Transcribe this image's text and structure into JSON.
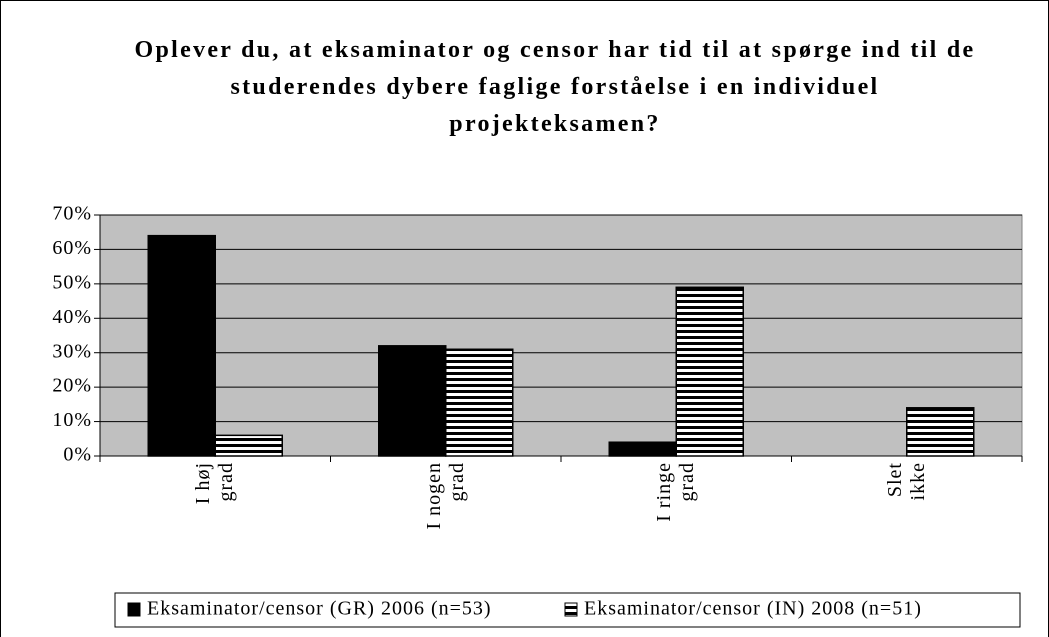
{
  "chart_data": {
    "type": "bar",
    "title": "Oplever du, at eksaminator og censor har tid til at spørge ind til de studerendes dybere faglige forståelse i en individuel projekteksamen?",
    "categories": [
      "I høj grad",
      "I nogen grad",
      "I ringe grad",
      "Slet ikke"
    ],
    "series": [
      {
        "name": "Eksaminator/censor (GR) 2006 (n=53)",
        "color": "#000000",
        "values": [
          64,
          32,
          4,
          0
        ]
      },
      {
        "name": "Eksaminator/censor (IN) 2008 (n=51)",
        "color": "#000000",
        "hatch": "horizontal",
        "values": [
          6,
          31,
          49,
          14
        ]
      }
    ],
    "ylim": [
      0,
      70
    ],
    "yticks": [
      {
        "value": 0,
        "label": "0%"
      },
      {
        "value": 10,
        "label": "10%"
      },
      {
        "value": 20,
        "label": "20%"
      },
      {
        "value": 30,
        "label": "30%"
      },
      {
        "value": 40,
        "label": "40%"
      },
      {
        "value": 50,
        "label": "50%"
      },
      {
        "value": 60,
        "label": "60%"
      },
      {
        "value": 70,
        "label": "70%"
      }
    ],
    "grid": true,
    "plot_background": "#c0c0c0",
    "legend": "bottom"
  }
}
